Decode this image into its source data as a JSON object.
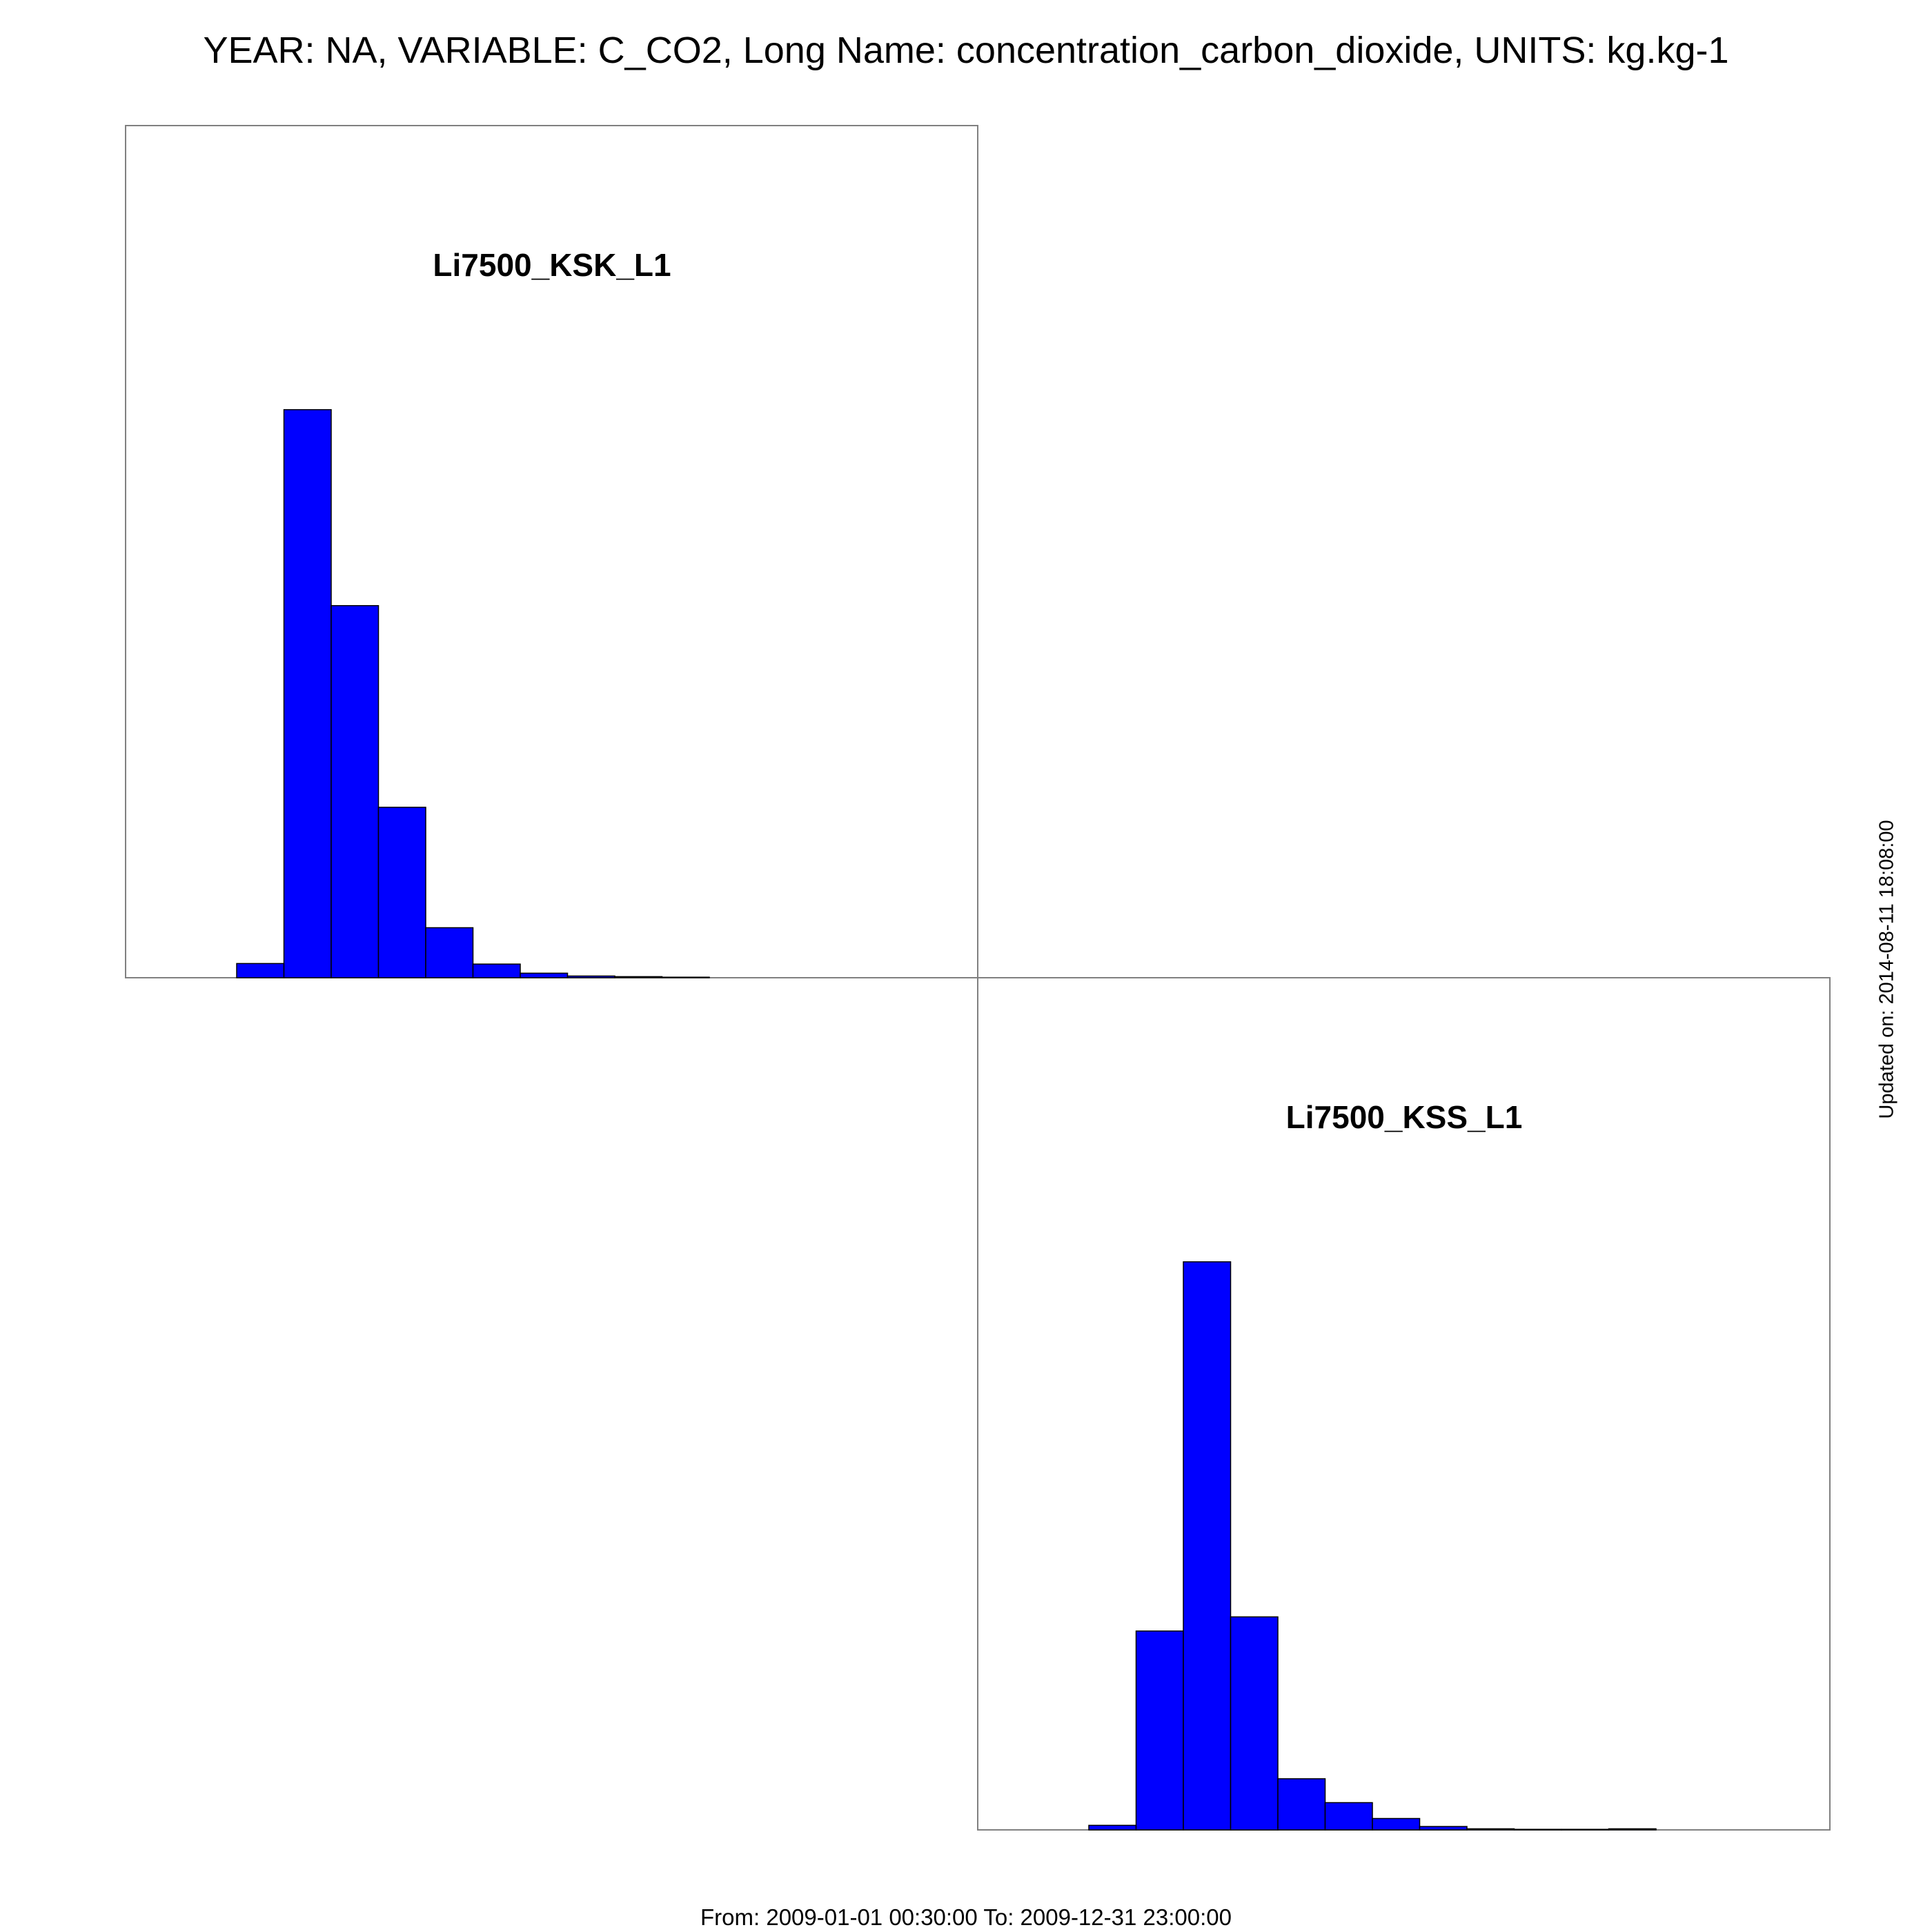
{
  "title": "YEAR: NA, VARIABLE: C_CO2, Long Name: concentration_carbon_dioxide, UNITS: kg.kg-1",
  "footer": "From: 2009-01-01 00:30:00 To: 2009-12-31 23:00:00",
  "updated": "Updated on: 2014-08-11 18:08:00",
  "colors": {
    "bar_fill": "#0000ff",
    "bar_stroke": "#000000",
    "frame": "#808080"
  },
  "chart_data": [
    {
      "type": "bar",
      "title": "Li7500_KSK_L1",
      "grid": false,
      "ylim": [
        0,
        1.5
      ],
      "values": [
        0.0,
        0.0,
        0.025,
        1.0,
        0.655,
        0.3,
        0.088,
        0.024,
        0.008,
        0.003,
        0.002,
        0.001,
        0.0,
        0.0,
        0.0,
        0.0,
        0.0,
        0.0
      ]
    },
    {
      "type": "bar",
      "title": "Li7500_KSS_L1",
      "grid": false,
      "ylim": [
        0,
        1.5
      ],
      "values": [
        0.0,
        0.0,
        0.008,
        0.35,
        1.0,
        0.375,
        0.09,
        0.048,
        0.02,
        0.006,
        0.002,
        0.001,
        0.001,
        0.002,
        0.0,
        0.0,
        0.0,
        0.0
      ]
    }
  ]
}
